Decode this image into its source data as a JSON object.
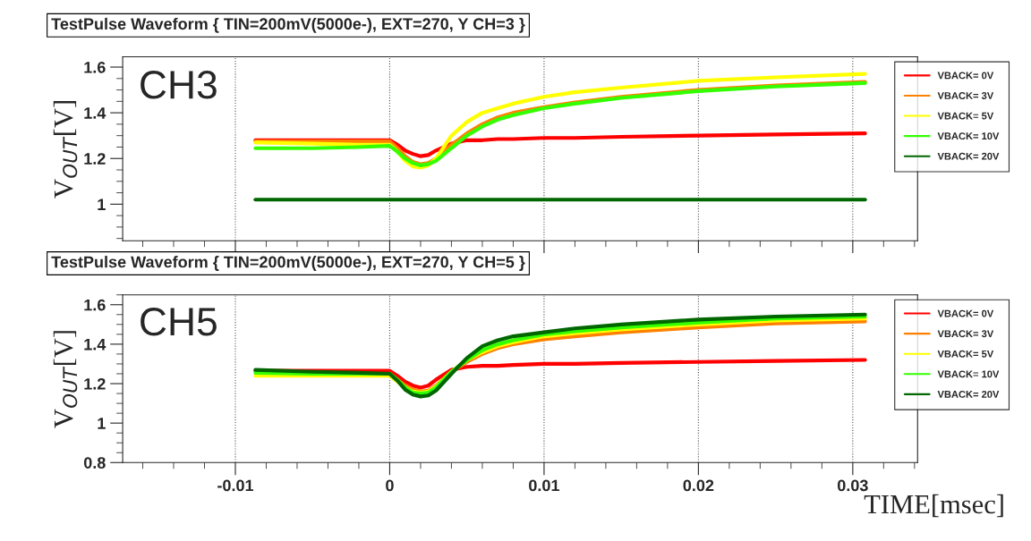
{
  "chart_data": [
    {
      "type": "line",
      "title": "TestPulse Waveform { TIN=200mV(5000e-), EXT=270, Y CH=3 }",
      "ylabel": "V$_{OUT}$[V]",
      "annotations": [
        "CH3"
      ],
      "x": [
        -0.0087,
        -0.005,
        -0.002,
        0,
        0.0005,
        0.001,
        0.0015,
        0.002,
        0.0025,
        0.003,
        0.004,
        0.005,
        0.006,
        0.007,
        0.008,
        0.01,
        0.012,
        0.015,
        0.02,
        0.025,
        0.0308
      ],
      "series": [
        {
          "name": "VBACK= 0V",
          "color": "#ff0000",
          "values": [
            1.28,
            1.28,
            1.28,
            1.28,
            1.26,
            1.235,
            1.22,
            1.21,
            1.215,
            1.235,
            1.265,
            1.28,
            1.28,
            1.285,
            1.285,
            1.29,
            1.29,
            1.295,
            1.3,
            1.305,
            1.31
          ]
        },
        {
          "name": "VBACK= 3V",
          "color": "#ff8000",
          "values": [
            1.275,
            1.275,
            1.275,
            1.275,
            1.245,
            1.21,
            1.185,
            1.175,
            1.18,
            1.2,
            1.26,
            1.31,
            1.35,
            1.38,
            1.4,
            1.425,
            1.445,
            1.47,
            1.5,
            1.52,
            1.535
          ]
        },
        {
          "name": "VBACK= 5V",
          "color": "#ffff00",
          "values": [
            1.27,
            1.265,
            1.26,
            1.26,
            1.23,
            1.19,
            1.165,
            1.16,
            1.17,
            1.2,
            1.3,
            1.36,
            1.4,
            1.42,
            1.44,
            1.47,
            1.49,
            1.51,
            1.54,
            1.555,
            1.57
          ]
        },
        {
          "name": "VBACK= 10V",
          "color": "#33ff00",
          "values": [
            1.245,
            1.245,
            1.25,
            1.255,
            1.23,
            1.2,
            1.18,
            1.17,
            1.175,
            1.19,
            1.245,
            1.3,
            1.34,
            1.37,
            1.39,
            1.42,
            1.44,
            1.465,
            1.495,
            1.515,
            1.53
          ]
        },
        {
          "name": "VBACK= 20V",
          "color": "#006600",
          "values": [
            1.02,
            1.02,
            1.02,
            1.02,
            1.02,
            1.02,
            1.02,
            1.02,
            1.02,
            1.02,
            1.02,
            1.02,
            1.02,
            1.02,
            1.02,
            1.02,
            1.02,
            1.02,
            1.02,
            1.02,
            1.02
          ]
        }
      ],
      "xlim": [
        -0.0173,
        0.0342
      ],
      "xticks": [
        -0.01,
        0,
        0.01,
        0.02,
        0.03
      ],
      "ylim": [
        0.84,
        1.645
      ],
      "yticks": [
        1,
        1.2,
        1.4,
        1.6
      ],
      "tick_labels": "y",
      "grid": "x",
      "legend": "top right",
      "line_style": "solid",
      "marker": "none"
    },
    {
      "type": "line",
      "title": "TestPulse Waveform { TIN=200mV(5000e-), EXT=270, Y CH=5 }",
      "ylabel": "V$_{OUT}$[V]",
      "xlabel": "TIME[msec]",
      "annotations": [
        "CH5"
      ],
      "x": [
        -0.0087,
        -0.005,
        -0.002,
        0,
        0.0005,
        0.001,
        0.0015,
        0.002,
        0.0025,
        0.003,
        0.004,
        0.005,
        0.006,
        0.007,
        0.008,
        0.01,
        0.012,
        0.015,
        0.02,
        0.025,
        0.0308
      ],
      "series": [
        {
          "name": "VBACK= 0V",
          "color": "#ff0000",
          "values": [
            1.265,
            1.265,
            1.265,
            1.265,
            1.24,
            1.21,
            1.19,
            1.18,
            1.19,
            1.22,
            1.27,
            1.285,
            1.29,
            1.29,
            1.295,
            1.3,
            1.3,
            1.305,
            1.31,
            1.315,
            1.32
          ]
        },
        {
          "name": "VBACK= 3V",
          "color": "#ff8000",
          "values": [
            null,
            null,
            null,
            1.25,
            1.22,
            1.19,
            1.17,
            1.16,
            1.165,
            1.19,
            1.26,
            1.31,
            1.35,
            1.38,
            1.4,
            1.425,
            1.44,
            1.46,
            1.485,
            1.505,
            1.515
          ]
        },
        {
          "name": "VBACK= 5V",
          "color": "#ffff00",
          "values": [
            1.24,
            1.24,
            1.24,
            1.24,
            1.21,
            1.18,
            1.16,
            1.155,
            1.16,
            1.185,
            1.26,
            1.32,
            1.36,
            1.39,
            1.41,
            1.44,
            1.455,
            1.475,
            1.5,
            1.52,
            1.53
          ]
        },
        {
          "name": "VBACK= 10V",
          "color": "#33ff00",
          "values": [
            1.255,
            1.25,
            1.25,
            1.25,
            1.22,
            1.18,
            1.155,
            1.15,
            1.155,
            1.18,
            1.26,
            1.32,
            1.37,
            1.4,
            1.42,
            1.45,
            1.465,
            1.485,
            1.51,
            1.53,
            1.54
          ]
        },
        {
          "name": "VBACK= 20V",
          "color": "#006600",
          "values": [
            1.27,
            1.26,
            1.255,
            1.25,
            1.215,
            1.17,
            1.145,
            1.135,
            1.14,
            1.165,
            1.25,
            1.33,
            1.39,
            1.42,
            1.44,
            1.46,
            1.48,
            1.5,
            1.525,
            1.54,
            1.55
          ]
        }
      ],
      "xlim": [
        -0.0173,
        0.0342
      ],
      "xticks": [
        -0.01,
        0,
        0.01,
        0.02,
        0.03
      ],
      "ylim": [
        0.8,
        1.65
      ],
      "yticks": [
        0.8,
        1,
        1.2,
        1.4,
        1.6
      ],
      "grid": "x",
      "legend": "top right",
      "line_style": "solid",
      "marker": "none"
    }
  ]
}
